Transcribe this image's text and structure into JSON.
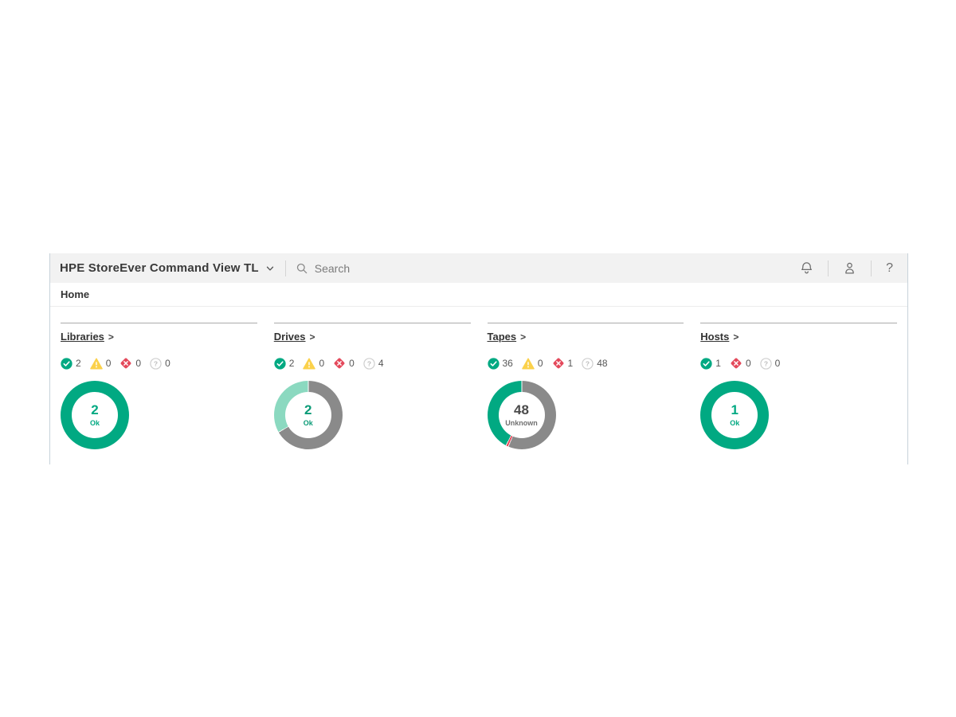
{
  "topbar": {
    "title": "HPE StoreEver Command View TL",
    "search_placeholder": "Search",
    "icons": {
      "chevron_down": "chevron-down",
      "search": "search",
      "bell": "notifications",
      "user": "user",
      "help_glyph": "?"
    }
  },
  "nav": {
    "home_label": "Home"
  },
  "ui": {
    "panel_arrow": ">"
  },
  "colors": {
    "ok_green": "#01a982",
    "ok_mint": "#8bd9c0",
    "warning_yellow": "#fbd14b",
    "error_red": "#e4495b",
    "unknown_gray": "#8a8a8a",
    "topbar_bg": "#f2f2f2"
  },
  "panels": [
    {
      "title": "Libraries",
      "statuses": [
        {
          "type": "ok",
          "count": "2"
        },
        {
          "type": "warning",
          "count": "0"
        },
        {
          "type": "error",
          "count": "0"
        },
        {
          "type": "unknown",
          "count": "0"
        }
      ],
      "donut": {
        "center_value": "2",
        "center_label": "Ok",
        "value_color": "#01a982",
        "label_color": "#01a982",
        "segments": [
          {
            "name": "Ok",
            "value": 2,
            "color": "#01a982"
          }
        ]
      }
    },
    {
      "title": "Drives",
      "statuses": [
        {
          "type": "ok",
          "count": "2"
        },
        {
          "type": "warning",
          "count": "0"
        },
        {
          "type": "error",
          "count": "0"
        },
        {
          "type": "unknown",
          "count": "4"
        }
      ],
      "donut": {
        "center_value": "2",
        "center_label": "Ok",
        "value_color": "#0b9b77",
        "label_color": "#0b9b77",
        "segments": [
          {
            "name": "Unknown",
            "value": 4,
            "color": "#8a8a8a"
          },
          {
            "name": "Ok",
            "value": 2,
            "color": "#8bd9c0"
          }
        ]
      }
    },
    {
      "title": "Tapes",
      "statuses": [
        {
          "type": "ok",
          "count": "36"
        },
        {
          "type": "warning",
          "count": "0"
        },
        {
          "type": "error",
          "count": "1"
        },
        {
          "type": "unknown",
          "count": "48"
        }
      ],
      "donut": {
        "center_value": "48",
        "center_label": "Unknown",
        "value_color": "#4a4a4a",
        "label_color": "#707070",
        "segments": [
          {
            "name": "Unknown",
            "value": 48,
            "color": "#8a8a8a"
          },
          {
            "name": "Error",
            "value": 1,
            "color": "#e4495b"
          },
          {
            "name": "Ok",
            "value": 36,
            "color": "#01a982"
          }
        ]
      }
    },
    {
      "title": "Hosts",
      "statuses": [
        {
          "type": "ok",
          "count": "1"
        },
        {
          "type": "error",
          "count": "0"
        },
        {
          "type": "unknown",
          "count": "0"
        }
      ],
      "donut": {
        "center_value": "1",
        "center_label": "Ok",
        "value_color": "#01a982",
        "label_color": "#01a982",
        "segments": [
          {
            "name": "Ok",
            "value": 1,
            "color": "#01a982"
          }
        ]
      }
    }
  ]
}
